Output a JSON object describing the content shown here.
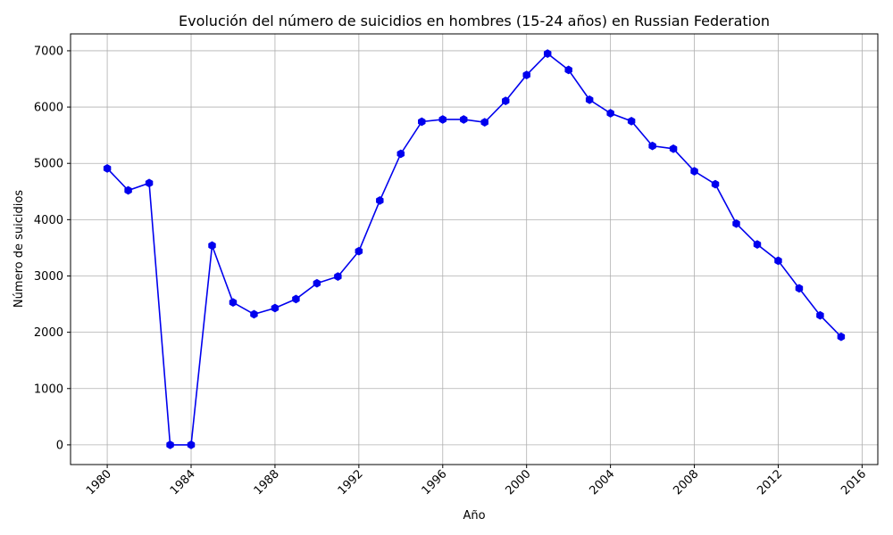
{
  "chart_data": {
    "type": "line",
    "title": "Evolución del número de suicidios en hombres (15-24 años) en Russian Federation",
    "xlabel": "Año",
    "ylabel": "Número de suicidios",
    "xlim": [
      1978.25,
      2016.75
    ],
    "ylim": [
      -350,
      7300
    ],
    "x_ticks": [
      1980,
      1984,
      1988,
      1992,
      1996,
      2000,
      2004,
      2008,
      2012,
      2016
    ],
    "y_ticks": [
      0,
      1000,
      2000,
      3000,
      4000,
      5000,
      6000,
      7000
    ],
    "grid": true,
    "color": "#0000ee",
    "marker": "hexagon",
    "x": [
      1980,
      1981,
      1982,
      1983,
      1984,
      1985,
      1986,
      1987,
      1988,
      1989,
      1990,
      1991,
      1992,
      1993,
      1994,
      1995,
      1996,
      1997,
      1998,
      1999,
      2000,
      2001,
      2002,
      2003,
      2004,
      2005,
      2006,
      2007,
      2008,
      2009,
      2010,
      2011,
      2012,
      2013,
      2014,
      2015
    ],
    "y": [
      4910,
      4520,
      4650,
      0,
      0,
      3540,
      2530,
      2320,
      2430,
      2590,
      2870,
      2990,
      3440,
      4340,
      5170,
      5740,
      5780,
      5780,
      5730,
      6110,
      6570,
      6950,
      6660,
      6130,
      5890,
      5750,
      5310,
      5260,
      4860,
      4630,
      3930,
      3560,
      3270,
      2780,
      2300,
      1920
    ]
  }
}
